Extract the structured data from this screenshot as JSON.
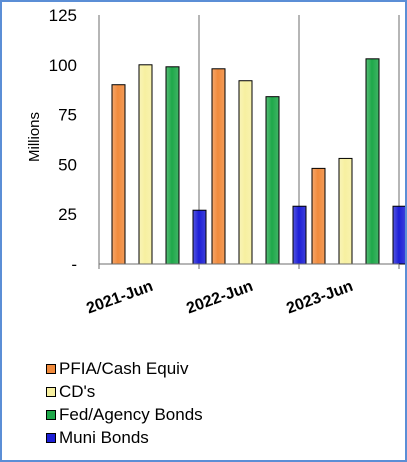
{
  "chart_data": {
    "type": "bar",
    "title": "",
    "ylabel": "Millions",
    "xlabel": "",
    "ylim": [
      0,
      125
    ],
    "yticks": [
      0,
      25,
      50,
      75,
      100,
      125
    ],
    "ytick_labels": [
      "-",
      "25",
      "50",
      "75",
      "100",
      "125"
    ],
    "categories": [
      "2021-Jun",
      "2022-Jun",
      "2023-Jun"
    ],
    "grid": "vertical category separators",
    "legend_position": "bottom",
    "series": [
      {
        "name": "PFIA/Cash Equiv",
        "color": "#f08a3c",
        "values": [
          90,
          98,
          48
        ]
      },
      {
        "name": "CD's",
        "color": "#f7f0a0",
        "values": [
          100,
          92,
          53
        ]
      },
      {
        "name": "Fed/Agency Bonds",
        "color": "#1fa84a",
        "values": [
          99,
          84,
          103
        ]
      },
      {
        "name": "Muni Bonds",
        "color": "#1d1fd6",
        "values": [
          27,
          29,
          29
        ]
      }
    ]
  }
}
